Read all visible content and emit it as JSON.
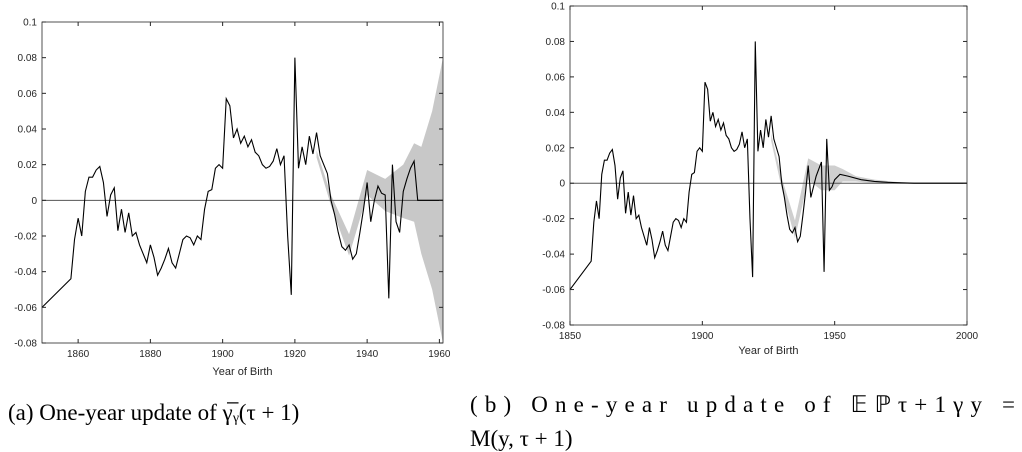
{
  "chart_data": [
    {
      "type": "line",
      "xlabel": "Year of Birth",
      "caption": [
        "(a) One-year update of γ̅ᵧ(τ + 1)"
      ],
      "xlim": [
        1850,
        1961
      ],
      "xticks": [
        1860,
        1880,
        1900,
        1920,
        1940,
        1960
      ],
      "ylim": [
        -0.08,
        0.1
      ],
      "yticks": [
        -0.08,
        -0.06,
        -0.04,
        -0.02,
        0,
        0.02,
        0.04,
        0.06,
        0.08,
        0.1
      ],
      "reference_line": 0,
      "band": {
        "color": "#9a9a9a",
        "x": [
          1926,
          1930,
          1935,
          1940,
          1945,
          1950,
          1953,
          1955,
          1958,
          1961
        ],
        "lower": [
          0.024,
          -0.003,
          -0.031,
          0.003,
          -0.006,
          -0.01,
          -0.012,
          -0.03,
          -0.05,
          -0.08
        ],
        "upper": [
          0.028,
          0.003,
          -0.019,
          0.017,
          0.012,
          0.02,
          0.032,
          0.03,
          0.05,
          0.08
        ]
      },
      "series": [
        {
          "color": "#000000",
          "x": [
            1850,
            1858,
            1859,
            1860,
            1861,
            1862,
            1863,
            1864,
            1865,
            1866,
            1867,
            1868,
            1869,
            1870,
            1871,
            1872,
            1873,
            1874,
            1875,
            1876,
            1877,
            1878,
            1879,
            1880,
            1881,
            1882,
            1883,
            1884,
            1885,
            1886,
            1887,
            1888,
            1889,
            1890,
            1891,
            1892,
            1893,
            1894,
            1895,
            1896,
            1897,
            1898,
            1899,
            1900,
            1901,
            1902,
            1903,
            1904,
            1905,
            1906,
            1907,
            1908,
            1909,
            1910,
            1911,
            1912,
            1913,
            1914,
            1915,
            1916,
            1917,
            1918,
            1919,
            1920,
            1921,
            1922,
            1923,
            1924,
            1925,
            1926,
            1927,
            1928,
            1929,
            1930,
            1931,
            1932,
            1933,
            1934,
            1935,
            1936,
            1937,
            1938,
            1939,
            1940,
            1941,
            1942,
            1943,
            1944,
            1945,
            1946,
            1947,
            1948,
            1949,
            1950,
            1951,
            1952,
            1953,
            1954,
            1956,
            1958,
            1961
          ],
          "values": [
            -0.06,
            -0.044,
            -0.022,
            -0.01,
            -0.02,
            0.005,
            0.013,
            0.013,
            0.017,
            0.019,
            0.01,
            -0.009,
            0.003,
            0.007,
            -0.017,
            -0.005,
            -0.018,
            -0.007,
            -0.02,
            -0.018,
            -0.025,
            -0.03,
            -0.035,
            -0.025,
            -0.032,
            -0.042,
            -0.038,
            -0.033,
            -0.027,
            -0.035,
            -0.038,
            -0.03,
            -0.022,
            -0.02,
            -0.021,
            -0.025,
            -0.02,
            -0.022,
            -0.005,
            0.005,
            0.006,
            0.018,
            0.02,
            0.018,
            0.057,
            0.053,
            0.035,
            0.04,
            0.032,
            0.036,
            0.03,
            0.034,
            0.027,
            0.025,
            0.02,
            0.018,
            0.019,
            0.022,
            0.029,
            0.02,
            0.025,
            -0.02,
            -0.053,
            0.08,
            0.018,
            0.03,
            0.02,
            0.036,
            0.026,
            0.038,
            0.025,
            0.02,
            0.015,
            0,
            -0.008,
            -0.018,
            -0.026,
            -0.028,
            -0.025,
            -0.033,
            -0.03,
            -0.018,
            -0.005,
            0.01,
            -0.012,
            0,
            0.008,
            0.004,
            0.003,
            -0.055,
            0.02,
            -0.012,
            -0.018,
            0.005,
            0.012,
            0.018,
            0.022,
            0,
            0,
            0,
            0
          ]
        }
      ]
    },
    {
      "type": "line",
      "xlabel": "Year of Birth",
      "caption": [
        "(b)  One-year  update  of  𝔼ℙτ+1γy  =",
        "M(y, τ + 1)"
      ],
      "xlim": [
        1850,
        2000
      ],
      "xticks": [
        1850,
        1900,
        1950,
        2000
      ],
      "ylim": [
        -0.08,
        0.1
      ],
      "yticks": [
        -0.08,
        -0.06,
        -0.04,
        -0.02,
        0,
        0.02,
        0.04,
        0.06,
        0.08,
        0.1
      ],
      "reference_line": 0,
      "band": {
        "color": "#a8a8a8",
        "x": [
          1926,
          1930,
          1935,
          1940,
          1945,
          1950,
          1953,
          1958,
          1965,
          1975
        ],
        "lower": [
          0.024,
          -0.003,
          -0.031,
          0.002,
          -0.004,
          -0.004,
          0.001,
          0.001,
          0,
          0
        ],
        "upper": [
          0.028,
          0.003,
          -0.021,
          0.014,
          0.01,
          0.01,
          0.008,
          0.004,
          0.002,
          0.0005
        ]
      },
      "series": [
        {
          "color": "#000000",
          "x": [
            1850,
            1858,
            1859,
            1860,
            1861,
            1862,
            1863,
            1864,
            1865,
            1866,
            1867,
            1868,
            1869,
            1870,
            1871,
            1872,
            1873,
            1874,
            1875,
            1876,
            1877,
            1878,
            1879,
            1880,
            1881,
            1882,
            1883,
            1884,
            1885,
            1886,
            1887,
            1888,
            1889,
            1890,
            1891,
            1892,
            1893,
            1894,
            1895,
            1896,
            1897,
            1898,
            1899,
            1900,
            1901,
            1902,
            1903,
            1904,
            1905,
            1906,
            1907,
            1908,
            1909,
            1910,
            1911,
            1912,
            1913,
            1914,
            1915,
            1916,
            1917,
            1918,
            1919,
            1920,
            1921,
            1922,
            1923,
            1924,
            1925,
            1926,
            1927,
            1928,
            1929,
            1930,
            1931,
            1932,
            1933,
            1934,
            1935,
            1936,
            1937,
            1938,
            1939,
            1940,
            1941,
            1942,
            1943,
            1944,
            1945,
            1946,
            1947,
            1948,
            1949,
            1950,
            1952,
            1955,
            1960,
            1965,
            1970,
            1980,
            2000
          ],
          "values": [
            -0.06,
            -0.044,
            -0.022,
            -0.01,
            -0.02,
            0.005,
            0.013,
            0.013,
            0.017,
            0.019,
            0.01,
            -0.009,
            0.003,
            0.007,
            -0.017,
            -0.005,
            -0.018,
            -0.007,
            -0.02,
            -0.018,
            -0.025,
            -0.03,
            -0.035,
            -0.025,
            -0.032,
            -0.042,
            -0.038,
            -0.033,
            -0.027,
            -0.035,
            -0.038,
            -0.03,
            -0.022,
            -0.02,
            -0.021,
            -0.025,
            -0.02,
            -0.022,
            -0.005,
            0.005,
            0.006,
            0.018,
            0.02,
            0.018,
            0.057,
            0.053,
            0.035,
            0.04,
            0.032,
            0.036,
            0.03,
            0.034,
            0.027,
            0.025,
            0.02,
            0.018,
            0.019,
            0.022,
            0.029,
            0.02,
            0.025,
            -0.02,
            -0.053,
            0.08,
            0.018,
            0.03,
            0.02,
            0.036,
            0.026,
            0.038,
            0.025,
            0.02,
            0.015,
            0,
            -0.008,
            -0.018,
            -0.026,
            -0.028,
            -0.025,
            -0.033,
            -0.03,
            -0.018,
            -0.005,
            0.01,
            -0.008,
            -0.002,
            0.004,
            0.008,
            0.012,
            -0.05,
            0.025,
            -0.004,
            -0.002,
            0.002,
            0.005,
            0.004,
            0.002,
            0.001,
            0.0005,
            0,
            0
          ]
        }
      ]
    }
  ]
}
